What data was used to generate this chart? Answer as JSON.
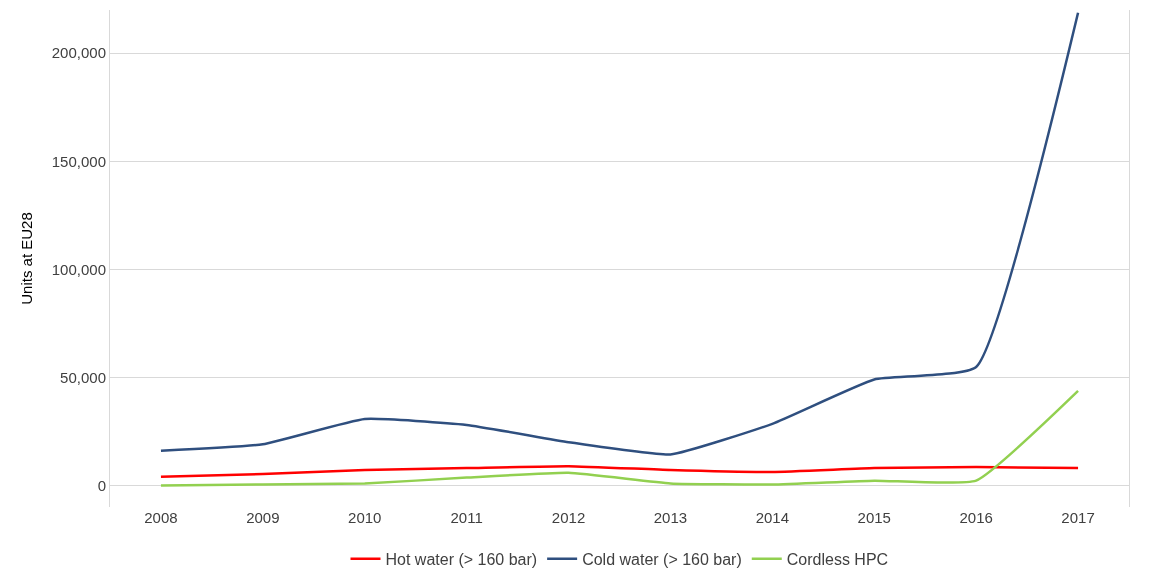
{
  "chart_data": {
    "type": "line",
    "ylabel": "Units at EU28",
    "categories": [
      "2008",
      "2009",
      "2010",
      "2011",
      "2012",
      "2013",
      "2014",
      "2015",
      "2016",
      "2017"
    ],
    "series": [
      {
        "name": "Hot water (> 160 bar)",
        "color": "#ff0000",
        "values": [
          4000,
          5300,
          7100,
          8000,
          8900,
          7100,
          6200,
          8000,
          8500,
          8000
        ]
      },
      {
        "name": "Cold water (> 160 bar)",
        "color": "#2f4f7f",
        "values": [
          16000,
          19000,
          30700,
          28000,
          20000,
          14300,
          28500,
          49000,
          54800,
          218700
        ]
      },
      {
        "name": "Cordless HPC",
        "color": "#92d050",
        "values": [
          0,
          400,
          900,
          3600,
          5800,
          900,
          400,
          2200,
          2200,
          43700
        ]
      }
    ],
    "ylim": [
      -10000,
      220000
    ],
    "yticks": [
      {
        "value": 0,
        "label": "0"
      },
      {
        "value": 50000,
        "label": "50,000"
      },
      {
        "value": 100000,
        "label": "100,000"
      },
      {
        "value": 150000,
        "label": "150,000"
      },
      {
        "value": 200000,
        "label": "200,000"
      }
    ],
    "grid": "y",
    "legend": "bottom",
    "marker": "none",
    "line_style": "solid"
  }
}
